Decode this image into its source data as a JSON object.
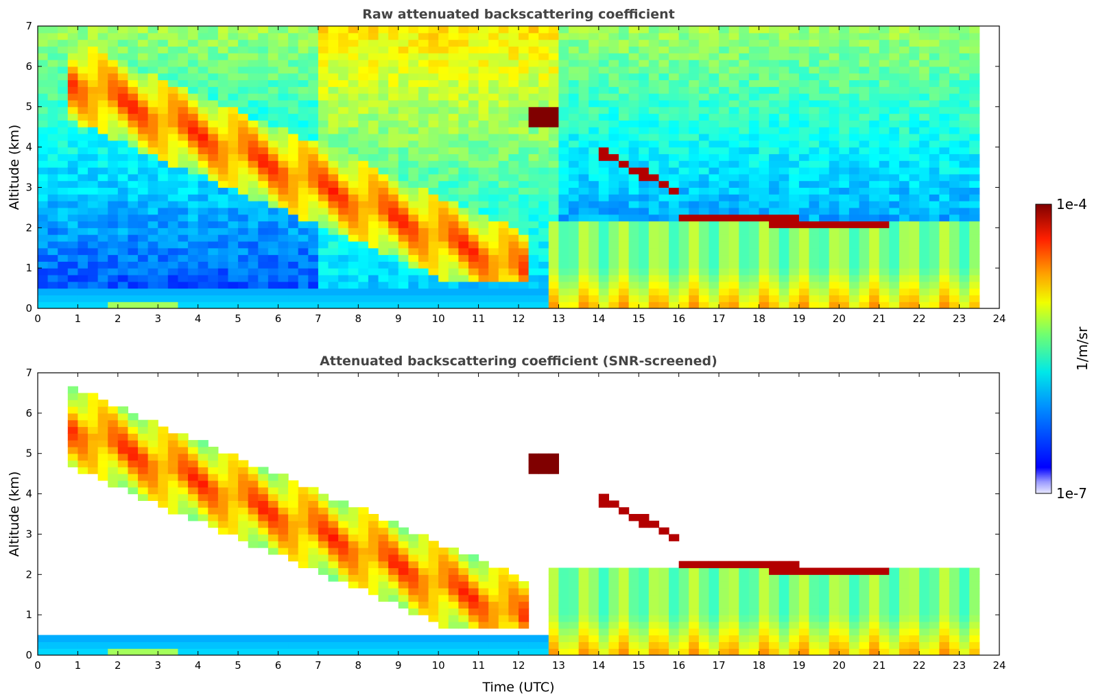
{
  "chart_data": [
    {
      "type": "heatmap",
      "title": "Raw attenuated backscattering coefficient",
      "xlabel": "",
      "ylabel": "Altitude (km)",
      "xlim": [
        0,
        24
      ],
      "ylim": [
        0,
        7
      ],
      "xticks": [
        "0",
        "1",
        "2",
        "3",
        "4",
        "5",
        "6",
        "7",
        "8",
        "9",
        "10",
        "11",
        "12",
        "13",
        "14",
        "15",
        "16",
        "17",
        "18",
        "19",
        "20",
        "21",
        "22",
        "23",
        "24"
      ],
      "yticks": [
        "0",
        "1",
        "2",
        "3",
        "4",
        "5",
        "6",
        "7"
      ],
      "screened": false,
      "features": [
        {
          "name": "boundary-layer-aerosol",
          "t": [
            0,
            12.8
          ],
          "alt": [
            0,
            0.5
          ],
          "level": 0.3
        },
        {
          "name": "cirrus-descending",
          "t": [
            0.8,
            12.3
          ],
          "alt": [
            0.7,
            6.5
          ],
          "level": 0.7
        },
        {
          "name": "mixed-phase-layer",
          "t": [
            12.2,
            13.0
          ],
          "alt": [
            4.6,
            4.9
          ],
          "level": 1.0
        },
        {
          "name": "cloud-top-layer",
          "t": [
            14.0,
            21.2
          ],
          "alt": [
            1.9,
            3.9
          ],
          "level": 0.95
        },
        {
          "name": "precipitation-column",
          "t": [
            12.8,
            23.6
          ],
          "alt": [
            0,
            2.3
          ],
          "level": 0.65
        }
      ]
    },
    {
      "type": "heatmap",
      "title": "Attenuated backscattering coefficient (SNR-screened)",
      "xlabel": "Time (UTC)",
      "ylabel": "Altitude (km)",
      "xlim": [
        0,
        24
      ],
      "ylim": [
        0,
        7
      ],
      "xticks": [
        "0",
        "1",
        "2",
        "3",
        "4",
        "5",
        "6",
        "7",
        "8",
        "9",
        "10",
        "11",
        "12",
        "13",
        "14",
        "15",
        "16",
        "17",
        "18",
        "19",
        "20",
        "21",
        "22",
        "23",
        "24"
      ],
      "yticks": [
        "0",
        "1",
        "2",
        "3",
        "4",
        "5",
        "6",
        "7"
      ],
      "screened": true
    }
  ],
  "colorbar": {
    "label": "1/m/sr",
    "max_label": "1e-4",
    "min_label": "1e-7",
    "colormap": "jet"
  }
}
